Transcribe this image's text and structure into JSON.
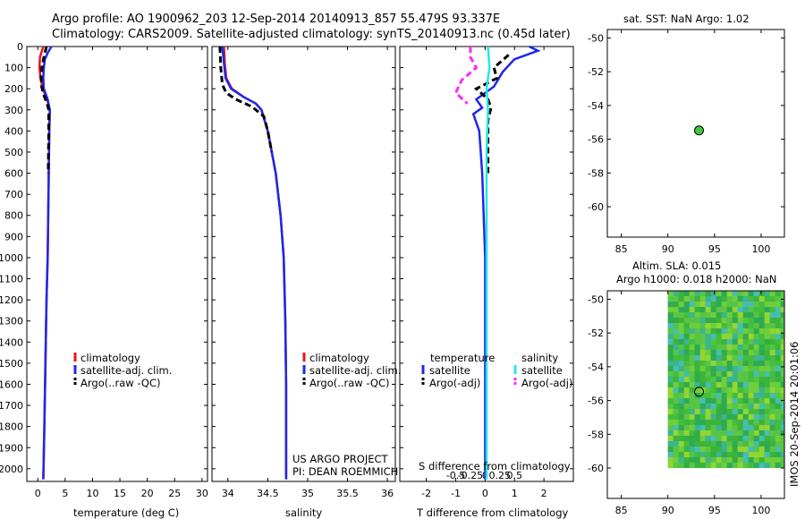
{
  "title_line1": "Argo profile: AO 1900962_203 12-Sep-2014 20140913_857 55.479S 93.337E",
  "title_line2": "Climatology: CARS2009. Satellite-adjusted climatology: synTS_20140913.nc (0.45d later)",
  "colors": {
    "climatology": "#e8141e",
    "satellite": "#1e28e6",
    "argo": "#000000",
    "sat_salinity": "#28e6e6",
    "argo_salinity": "#ff28ff",
    "marker": "#3cc83c"
  },
  "chart_data": [
    {
      "type": "line",
      "id": "temperature",
      "xlabel": "temperature (deg C)",
      "xlim": [
        -2,
        31
      ],
      "ylim": [
        2060,
        0
      ],
      "xticks": [
        0,
        5,
        10,
        15,
        20,
        25,
        30
      ],
      "yticks": [
        0,
        100,
        200,
        300,
        400,
        500,
        600,
        700,
        800,
        900,
        1000,
        1100,
        1200,
        1300,
        1400,
        1500,
        1600,
        1700,
        1800,
        1900,
        2000
      ],
      "legend": [
        "climatology",
        "satellite-adj. clim.",
        "Argo(..raw -QC)"
      ],
      "series": [
        {
          "name": "climatology",
          "style": "solid",
          "points": [
            [
              1.0,
              0
            ],
            [
              0.4,
              50
            ],
            [
              0.3,
              100
            ],
            [
              0.5,
              150
            ],
            [
              0.9,
              200
            ],
            [
              1.8,
              260
            ],
            [
              2.2,
              300
            ],
            [
              2.1,
              400
            ],
            [
              2.0,
              600
            ],
            [
              1.9,
              800
            ],
            [
              1.8,
              1000
            ],
            [
              1.6,
              1200
            ],
            [
              1.4,
              1500
            ],
            [
              1.2,
              1800
            ],
            [
              1.0,
              2050
            ]
          ]
        },
        {
          "name": "satellite-adj. clim.",
          "style": "solid",
          "points": [
            [
              2.5,
              0
            ],
            [
              1.8,
              30
            ],
            [
              1.3,
              60
            ],
            [
              1.1,
              100
            ],
            [
              1.0,
              150
            ],
            [
              1.1,
              200
            ],
            [
              1.8,
              250
            ],
            [
              2.2,
              300
            ],
            [
              2.1,
              400
            ],
            [
              2.0,
              600
            ],
            [
              1.9,
              800
            ],
            [
              1.8,
              1000
            ],
            [
              1.6,
              1200
            ],
            [
              1.4,
              1500
            ],
            [
              1.2,
              1800
            ],
            [
              1.0,
              2050
            ]
          ]
        },
        {
          "name": "Argo(..raw -QC)",
          "style": "dashed",
          "points": [
            [
              1.6,
              0
            ],
            [
              1.2,
              40
            ],
            [
              0.8,
              90
            ],
            [
              0.6,
              140
            ],
            [
              0.7,
              190
            ],
            [
              1.1,
              230
            ],
            [
              1.7,
              270
            ],
            [
              2.0,
              300
            ],
            [
              2.0,
              400
            ],
            [
              1.9,
              600
            ]
          ]
        }
      ]
    },
    {
      "type": "line",
      "id": "salinity",
      "xlabel": "salinity",
      "xlim": [
        33.8,
        36.1
      ],
      "ylim": [
        2060,
        0
      ],
      "xticks": [
        34,
        34.5,
        35,
        35.5,
        36
      ],
      "legend": [
        "climatology",
        "satellite-adj. clim.",
        "Argo(..raw -QC)"
      ],
      "annotation": [
        "US ARGO PROJECT",
        "PI: DEAN ROEMMICH"
      ],
      "series": [
        {
          "name": "climatology",
          "style": "solid",
          "points": [
            [
              33.95,
              0
            ],
            [
              33.96,
              80
            ],
            [
              33.98,
              150
            ],
            [
              34.05,
              200
            ],
            [
              34.2,
              240
            ],
            [
              34.35,
              270
            ],
            [
              34.42,
              300
            ],
            [
              34.5,
              400
            ],
            [
              34.6,
              600
            ],
            [
              34.66,
              800
            ],
            [
              34.7,
              1000
            ],
            [
              34.72,
              1300
            ],
            [
              34.73,
              1600
            ],
            [
              34.73,
              2050
            ]
          ]
        },
        {
          "name": "satellite-adj. clim.",
          "style": "solid",
          "points": [
            [
              33.93,
              0
            ],
            [
              33.95,
              80
            ],
            [
              33.97,
              150
            ],
            [
              34.04,
              200
            ],
            [
              34.2,
              240
            ],
            [
              34.35,
              270
            ],
            [
              34.42,
              300
            ],
            [
              34.5,
              400
            ],
            [
              34.6,
              600
            ],
            [
              34.66,
              800
            ],
            [
              34.7,
              1000
            ],
            [
              34.72,
              1300
            ],
            [
              34.73,
              1600
            ],
            [
              34.73,
              2050
            ]
          ]
        },
        {
          "name": "Argo(..raw -QC)",
          "style": "dashed",
          "points": [
            [
              33.9,
              0
            ],
            [
              33.91,
              100
            ],
            [
              33.93,
              180
            ],
            [
              33.98,
              220
            ],
            [
              34.1,
              250
            ],
            [
              34.3,
              285
            ],
            [
              34.45,
              330
            ],
            [
              34.5,
              400
            ],
            [
              34.55,
              500
            ]
          ]
        }
      ]
    },
    {
      "type": "line",
      "id": "difference",
      "xlabel": "T difference from climatology",
      "xlabel_top": "S difference from climatology",
      "xlim": [
        -2.9,
        3.0
      ],
      "ylim": [
        2060,
        0
      ],
      "xticks": [
        -2,
        -1,
        0,
        1,
        2
      ],
      "xticks_top": [
        {
          "v": -1.0,
          "t": "-0.5"
        },
        {
          "v": -0.5,
          "t": "-0.25"
        },
        {
          "v": 0,
          "t": "0"
        },
        {
          "v": 0.5,
          "t": "0.25"
        },
        {
          "v": 1.0,
          "t": "0.5"
        }
      ],
      "legend_temperature": {
        "title": "temperature",
        "items": [
          "satellite",
          "Argo(-adj)"
        ]
      },
      "legend_salinity": {
        "title": "salinity",
        "items": [
          "satellite",
          "Argo(-adj)"
        ]
      },
      "series": [
        {
          "name": "T satellite",
          "color": "satellite",
          "style": "solid",
          "points": [
            [
              1.5,
              0
            ],
            [
              1.8,
              20
            ],
            [
              1.0,
              60
            ],
            [
              0.6,
              120
            ],
            [
              0.3,
              190
            ],
            [
              -0.3,
              250
            ],
            [
              -0.1,
              290
            ],
            [
              -0.4,
              320
            ],
            [
              -0.2,
              400
            ],
            [
              -0.1,
              600
            ],
            [
              0,
              1000
            ],
            [
              0,
              1500
            ],
            [
              0,
              2050
            ]
          ]
        },
        {
          "name": "T Argo(-adj)",
          "color": "argo",
          "style": "dashed",
          "points": [
            [
              0.8,
              40
            ],
            [
              0.3,
              100
            ],
            [
              0.4,
              150
            ],
            [
              -0.3,
              200
            ],
            [
              0.1,
              250
            ],
            [
              0.2,
              290
            ],
            [
              0.1,
              350
            ],
            [
              0.1,
              600
            ]
          ]
        },
        {
          "name": "S satellite",
          "color": "sat_salinity",
          "style": "solid",
          "points": [
            [
              0.1,
              0
            ],
            [
              0.15,
              100
            ],
            [
              0.05,
              200
            ],
            [
              0.1,
              300
            ],
            [
              0.05,
              500
            ],
            [
              0.05,
              800
            ],
            [
              0.05,
              1200
            ],
            [
              0.05,
              1600
            ],
            [
              0.05,
              2050
            ]
          ]
        },
        {
          "name": "S Argo(-adj)",
          "color": "argo_salinity",
          "style": "dashed",
          "points": [
            [
              -0.5,
              0
            ],
            [
              -0.5,
              50
            ],
            [
              -0.3,
              100
            ],
            [
              -0.8,
              160
            ],
            [
              -1.0,
              220
            ],
            [
              -0.6,
              270
            ]
          ]
        }
      ]
    },
    {
      "type": "scatter",
      "id": "sst_map",
      "title": "sat. SST: NaN Argo: 1.02",
      "xlim": [
        83.5,
        102.5
      ],
      "ylim": [
        -61.8,
        -49.5
      ],
      "xticks": [
        85,
        90,
        95,
        100
      ],
      "yticks": [
        -50,
        -52,
        -54,
        -56,
        -58,
        -60
      ],
      "point": {
        "lon": 93.337,
        "lat": -55.479
      }
    },
    {
      "type": "heatmap",
      "id": "sla_map",
      "title_line1": "Altim. SLA: 0.015",
      "title_line2": "Argo h1000: 0.018 h2000: NaN",
      "xlim": [
        83.5,
        102.5
      ],
      "ylim": [
        -61.8,
        -49.5
      ],
      "xticks": [
        85,
        90,
        95,
        100
      ],
      "yticks": [
        -50,
        -52,
        -54,
        -56,
        -58,
        -60
      ],
      "field_extent": {
        "lon": [
          90,
          102.5
        ],
        "lat": [
          -60,
          -49.5
        ]
      },
      "point": {
        "lon": 93.337,
        "lat": -55.479
      },
      "side_label": "IMOS 20-Sep-2014 20:01:06"
    }
  ]
}
